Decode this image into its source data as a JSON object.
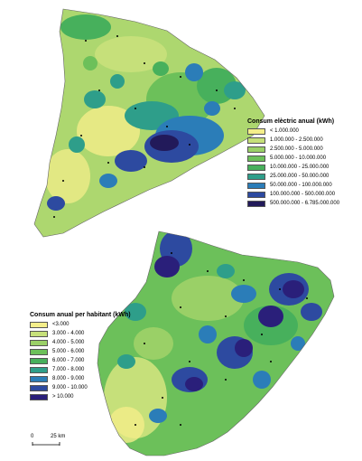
{
  "legend_top": {
    "title": "Consum elèctric anual (kWh)",
    "items": [
      {
        "label": "< 1.000.000",
        "color": "#f4ee8a"
      },
      {
        "label": "1.000.000 - 2.500.000",
        "color": "#c6e07a"
      },
      {
        "label": "2.500.000 - 5.000.000",
        "color": "#9ad067"
      },
      {
        "label": "5.000.000 - 10.000.000",
        "color": "#6cc05a"
      },
      {
        "label": "10.000.000 - 25.000.000",
        "color": "#47b05c"
      },
      {
        "label": "25.000.000 - 50.000.000",
        "color": "#2e9e8a"
      },
      {
        "label": "50.000.000 - 100.000.000",
        "color": "#2b7db8"
      },
      {
        "label": "100.000.000 - 500.000.000",
        "color": "#2d4aa0"
      },
      {
        "label": "500.000.000 - 6.785.000.000",
        "color": "#221a5a"
      }
    ]
  },
  "legend_bottom": {
    "title": "Consum anual per habitant (kWh)",
    "items": [
      {
        "label": "<3.000",
        "color": "#f4ee8a"
      },
      {
        "label": "3.000 - 4.000",
        "color": "#c6e07a"
      },
      {
        "label": "4.000 - 5.000",
        "color": "#9ad067"
      },
      {
        "label": "5.000 - 6.000",
        "color": "#6cc05a"
      },
      {
        "label": "6.000 - 7.000",
        "color": "#47b05c"
      },
      {
        "label": "7.000 - 8.000",
        "color": "#2e9e8a"
      },
      {
        "label": "8.000 - 9.000",
        "color": "#2b7db8"
      },
      {
        "label": "9.000 - 10.000",
        "color": "#2d4aa0"
      },
      {
        "label": "> 10.000",
        "color": "#2a1f7a"
      }
    ]
  },
  "scale": {
    "start": "0",
    "end": "25 km"
  }
}
